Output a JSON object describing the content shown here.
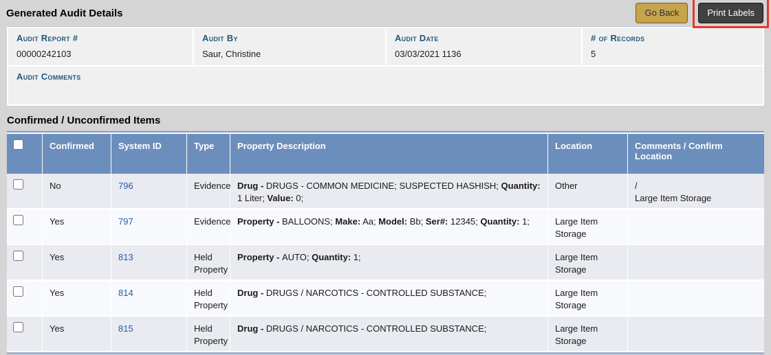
{
  "page": {
    "title": "Generated Audit Details",
    "items_title": "Confirmed / Unconfirmed Items"
  },
  "toolbar": {
    "go_back_label": "Go Back",
    "print_labels_label": "Print Labels"
  },
  "audit": {
    "fields": [
      {
        "label": "Audit Report #",
        "value": "00000242103"
      },
      {
        "label": "Audit By",
        "value": "Saur, Christine"
      },
      {
        "label": "Audit Date",
        "value": "03/03/2021 1136"
      },
      {
        "label": "# of Records",
        "value": "5"
      }
    ],
    "comments_label": "Audit Comments",
    "comments_value": ""
  },
  "table": {
    "columns": [
      "",
      "Confirmed",
      "System ID",
      "Type",
      "Property Description",
      "Location",
      "Comments / Confirm Location"
    ],
    "rows": [
      {
        "checked": false,
        "confirmed": "No",
        "system_id": "796",
        "type": "Evidence",
        "description": [
          {
            "text": "Drug - ",
            "bold": true
          },
          {
            "text": "DRUGS - COMMON MEDICINE; SUSPECTED HASHISH; ",
            "bold": false
          },
          {
            "text": "Quantity:",
            "bold": true
          },
          {
            "text": " 1 Liter; ",
            "bold": false
          },
          {
            "text": "Value:",
            "bold": true
          },
          {
            "text": " 0;",
            "bold": false
          }
        ],
        "location": "Other",
        "comments": "/\nLarge Item Storage"
      },
      {
        "checked": false,
        "confirmed": "Yes",
        "system_id": "797",
        "type": "Evidence",
        "description": [
          {
            "text": "Property - ",
            "bold": true
          },
          {
            "text": "BALLOONS; ",
            "bold": false
          },
          {
            "text": "Make:",
            "bold": true
          },
          {
            "text": " Aa; ",
            "bold": false
          },
          {
            "text": "Model:",
            "bold": true
          },
          {
            "text": " Bb; ",
            "bold": false
          },
          {
            "text": "Ser#:",
            "bold": true
          },
          {
            "text": " 12345; ",
            "bold": false
          },
          {
            "text": "Quantity:",
            "bold": true
          },
          {
            "text": " 1;",
            "bold": false
          }
        ],
        "location": "Large Item Storage",
        "comments": ""
      },
      {
        "checked": false,
        "confirmed": "Yes",
        "system_id": "813",
        "type": "Held Property",
        "description": [
          {
            "text": "Property - ",
            "bold": true
          },
          {
            "text": "AUTO; ",
            "bold": false
          },
          {
            "text": "Quantity:",
            "bold": true
          },
          {
            "text": " 1;",
            "bold": false
          }
        ],
        "location": "Large Item Storage",
        "comments": ""
      },
      {
        "checked": false,
        "confirmed": "Yes",
        "system_id": "814",
        "type": "Held Property",
        "description": [
          {
            "text": "Drug - ",
            "bold": true
          },
          {
            "text": "DRUGS / NARCOTICS - CONTROLLED SUBSTANCE;",
            "bold": false
          }
        ],
        "location": "Large Item Storage",
        "comments": ""
      },
      {
        "checked": false,
        "confirmed": "Yes",
        "system_id": "815",
        "type": "Held Property",
        "description": [
          {
            "text": "Drug - ",
            "bold": true
          },
          {
            "text": "DRUGS / NARCOTICS - CONTROLLED SUBSTANCE;",
            "bold": false
          }
        ],
        "location": "Large Item Storage",
        "comments": ""
      }
    ]
  },
  "colors": {
    "header_bg": "#6c8ebc",
    "row_odd": "#e9ebf1",
    "row_even": "#f8f9fc",
    "link_color": "#2659ad",
    "label_color": "#20587a",
    "go_back_bg": "#c6a44c",
    "print_bg": "#414141",
    "annotation_red": "#e3392c"
  }
}
